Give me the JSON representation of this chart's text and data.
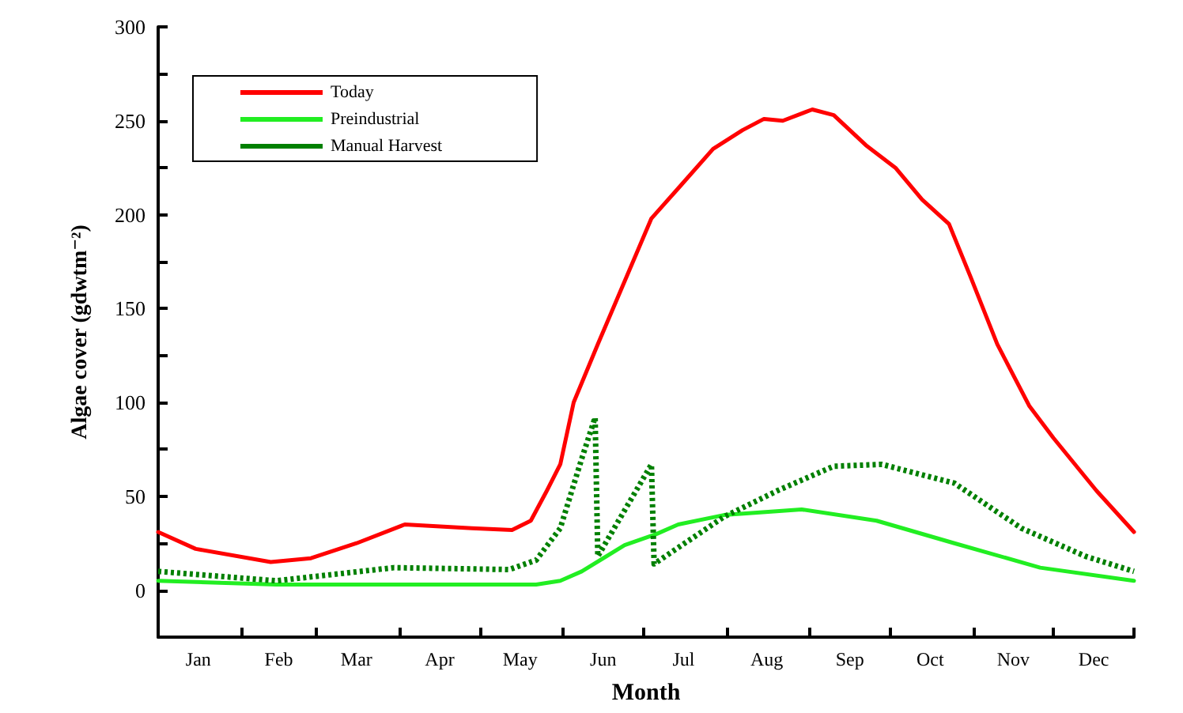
{
  "chart_data": {
    "type": "line",
    "xlabel": "Month",
    "ylabel": "Algae cover (gdwtm⁻²)",
    "xlim": [
      "--01-01",
      "--12-31"
    ],
    "xticks": [
      {
        "value": "--01-01",
        "label": null
      },
      {
        "value": "--02-01",
        "label": null
      },
      {
        "value": "--03-01",
        "label": null
      },
      {
        "value": "--04-01",
        "label": null
      },
      {
        "value": "--05-01",
        "label": null
      },
      {
        "value": "--06-01",
        "label": null
      },
      {
        "value": "--07-01",
        "label": null
      },
      {
        "value": "--08-01",
        "label": null
      },
      {
        "value": "--09-01",
        "label": null
      },
      {
        "value": "--10-01",
        "label": null
      },
      {
        "value": "--11-01",
        "label": null
      },
      {
        "value": "--12-01",
        "label": null
      },
      {
        "value": "--12-31",
        "label": null
      },
      {
        "value": "--01-16",
        "label": "Jan"
      },
      {
        "value": "--02-15",
        "label": "Feb"
      },
      {
        "value": "--03-16",
        "label": "Mar"
      },
      {
        "value": "--04-16",
        "label": "Apr"
      },
      {
        "value": "--05-16",
        "label": "May"
      },
      {
        "value": "--06-16",
        "label": "Jun"
      },
      {
        "value": "--07-16",
        "label": "Jul"
      },
      {
        "value": "--08-16",
        "label": "Aug"
      },
      {
        "value": "--09-16",
        "label": "Sep"
      },
      {
        "value": "--10-16",
        "label": "Oct"
      },
      {
        "value": "--11-16",
        "label": "Nov"
      },
      {
        "value": "--12-16",
        "label": "Dec"
      }
    ],
    "ylim": [
      -25,
      300
    ],
    "yticks": [
      0,
      {
        "value": 25,
        "label": null
      },
      50,
      {
        "value": 75,
        "label": null
      },
      100,
      {
        "value": 125,
        "label": null
      },
      150,
      {
        "value": 175,
        "label": null
      },
      200,
      {
        "value": 225,
        "label": null
      },
      250,
      {
        "value": 275,
        "label": null
      },
      300
    ],
    "grid": false,
    "legend": "top left",
    "marker": "none",
    "series": [
      {
        "name": "Today",
        "color": "#ff0000",
        "line_style": "solid",
        "x": [
          "--01-01",
          "--01-15",
          "--02-12",
          "--02-27",
          "--03-16",
          "--04-03",
          "--04-28",
          "--05-13",
          "--05-20",
          "--05-26",
          "--05-31",
          "--06-05",
          "--06-14",
          "--07-04",
          "--07-14",
          "--07-27",
          "--08-07",
          "--08-15",
          "--08-22",
          "--09-02",
          "--09-10",
          "--09-22",
          "--10-03",
          "--10-13",
          "--10-23",
          "--10-31",
          "--11-10",
          "--11-22",
          "--12-01",
          "--12-17",
          "--12-31"
        ],
        "values": [
          31,
          22,
          15,
          17,
          25,
          35,
          33,
          32,
          37,
          53,
          67,
          100,
          131,
          198,
          214,
          235,
          245,
          251,
          250,
          256,
          253,
          237,
          225,
          208,
          195,
          167,
          131,
          98,
          81,
          53,
          31
        ]
      },
      {
        "name": "Preindustrial",
        "color": "#22ee22",
        "line_style": "solid",
        "x": [
          "--01-01",
          "--02-14",
          "--04-15",
          "--05-22",
          "--05-31",
          "--06-08",
          "--06-24",
          "--07-06",
          "--07-14",
          "--07-31",
          "--08-29",
          "--09-26",
          "--10-25",
          "--11-26",
          "--12-31"
        ],
        "values": [
          5,
          3,
          3,
          3,
          5,
          10,
          24,
          30,
          35,
          40,
          43,
          37,
          25,
          12,
          5
        ]
      },
      {
        "name": "Manual Harvest",
        "color": "#008000",
        "line_style": "dotted",
        "x": [
          "--01-01",
          "--02-14",
          "--03-30",
          "--05-12",
          "--05-22",
          "--05-31",
          "--06-08",
          "--06-13",
          "--06-14",
          "--07-04",
          "--07-05",
          "--07-31",
          "--08-20",
          "--09-10",
          "--09-28",
          "--10-25",
          "--11-19",
          "--12-13",
          "--12-31"
        ],
        "values": [
          10,
          5,
          12,
          11,
          16,
          33,
          70,
          92,
          18,
          67,
          14,
          39,
          53,
          66,
          67,
          57,
          33,
          18,
          10
        ]
      }
    ]
  }
}
